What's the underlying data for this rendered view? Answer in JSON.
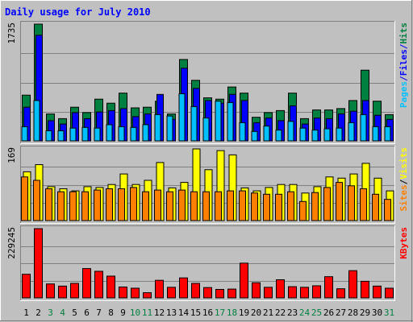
{
  "chart_data": {
    "type": "bar",
    "title": "Daily usage for July 2010",
    "x": [
      1,
      2,
      3,
      4,
      5,
      6,
      7,
      8,
      9,
      10,
      11,
      12,
      13,
      14,
      15,
      16,
      17,
      18,
      19,
      20,
      21,
      22,
      23,
      24,
      25,
      26,
      27,
      28,
      29,
      30,
      31
    ],
    "weekend_days": [
      3,
      4,
      10,
      11,
      17,
      18,
      24,
      25,
      31
    ],
    "panels": [
      {
        "name": "hits-files-pages",
        "ymax_label": "1735",
        "ylim": [
          0,
          1735
        ],
        "legend": [
          {
            "text": "Pages",
            "color": "#00c0ff"
          },
          {
            "text": "/",
            "color": "#0000ff"
          },
          {
            "text": "Files",
            "color": "#0000ff"
          },
          {
            "text": "/",
            "color": "#0000ff"
          },
          {
            "text": "Hits",
            "color": "#008040"
          }
        ],
        "series": [
          {
            "name": "Hits",
            "color": "#008040",
            "values": [
              680,
              1735,
              400,
              330,
              500,
              420,
              620,
              560,
              710,
              490,
              500,
              590,
              400,
              1210,
              900,
              640,
              620,
              800,
              710,
              350,
              420,
              450,
              710,
              330,
              460,
              460,
              480,
              600,
              1050,
              590,
              390
            ]
          },
          {
            "name": "Files",
            "color": "#0000ff",
            "values": [
              500,
              1570,
              300,
              250,
              420,
              330,
              430,
              450,
              480,
              360,
              400,
              690,
              320,
              1080,
              780,
              600,
              560,
              690,
              600,
              270,
              340,
              300,
              520,
              250,
              340,
              330,
              400,
              440,
              600,
              380,
              320
            ]
          },
          {
            "name": "Pages",
            "color": "#00c0ff",
            "values": [
              210,
              600,
              150,
              150,
              190,
              200,
              190,
              240,
              210,
              200,
              240,
              390,
              370,
              700,
              510,
              340,
              590,
              570,
              270,
              140,
              220,
              160,
              290,
              190,
              160,
              180,
              190,
              270,
              390,
              210,
              210
            ]
          }
        ]
      },
      {
        "name": "visits-sites",
        "ymax_label": "169",
        "ylim": [
          0,
          169
        ],
        "legend": [
          {
            "text": "Sites",
            "color": "#ff8000"
          },
          {
            "text": "/",
            "color": "#000000"
          },
          {
            "text": "Visits",
            "color": "#ffff00"
          }
        ],
        "series": [
          {
            "name": "Visits",
            "color": "#ffff00",
            "values": [
              115,
              132,
              80,
              75,
              70,
              80,
              78,
              85,
              110,
              85,
              95,
              137,
              77,
              90,
              169,
              120,
              165,
              155,
              77,
              70,
              78,
              85,
              85,
              65,
              80,
              103,
              100,
              110,
              135,
              100,
              70
            ]
          },
          {
            "name": "Sites",
            "color": "#ff8000",
            "values": [
              103,
              95,
              75,
              68,
              68,
              68,
              72,
              75,
              75,
              78,
              68,
              72,
              68,
              72,
              68,
              68,
              68,
              70,
              70,
              65,
              62,
              62,
              68,
              45,
              66,
              78,
              90,
              82,
              75,
              62,
              50
            ]
          }
        ]
      },
      {
        "name": "kbytes",
        "ymax_label": "229245",
        "ylim": [
          0,
          229245
        ],
        "legend": [
          {
            "text": "KBytes",
            "color": "#ff0000"
          }
        ],
        "series": [
          {
            "name": "KBytes",
            "color": "#ff0000",
            "values": [
              78000,
              229245,
              46000,
              39000,
              48000,
              97000,
              88000,
              72000,
              36000,
              32000,
              17000,
              58000,
              35000,
              66000,
              48000,
              34000,
              28000,
              29000,
              115000,
              50000,
              35000,
              60000,
              37000,
              35000,
              40000,
              70000,
              30000,
              90000,
              55000,
              39000,
              32000
            ]
          }
        ]
      }
    ]
  }
}
